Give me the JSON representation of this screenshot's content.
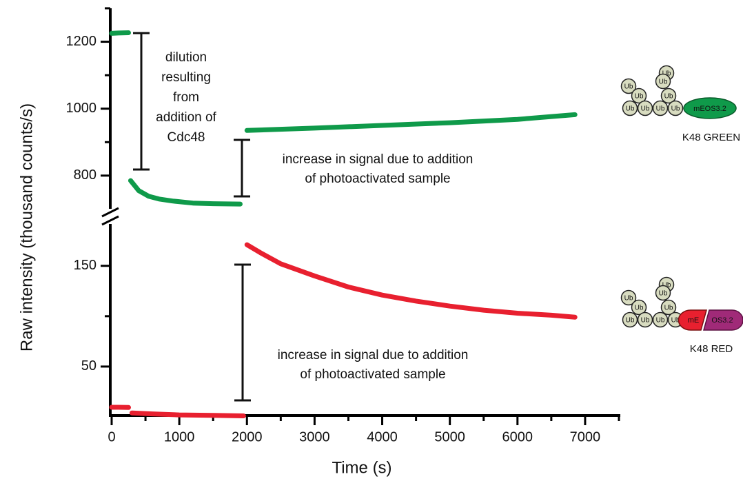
{
  "chart_data": [
    {
      "type": "line",
      "ylabel": "Raw intensity (thousand counts/s)",
      "xlim": [
        0,
        7500
      ],
      "ylim": [
        707,
        1300
      ],
      "yticks": [
        800,
        1000,
        1200
      ],
      "yminorticks": [
        900,
        1100,
        1300
      ],
      "series": [
        {
          "name": "K48 GREEN",
          "color": "#0f9a4a",
          "x": [
            0,
            100,
            250,
            265,
            280,
            400,
            550,
            700,
            900,
            1200,
            1500,
            1900,
            1950,
            2000,
            3000,
            4000,
            5000,
            6000,
            6850
          ],
          "values": [
            1225,
            1226,
            1227,
            null,
            785,
            755,
            738,
            730,
            724,
            718,
            716,
            715,
            null,
            935,
            942,
            950,
            958,
            968,
            982
          ]
        }
      ],
      "annotations": [
        {
          "lines": [
            "dilution",
            "resulting",
            "from",
            "addition of",
            "Cdc48"
          ]
        },
        {
          "lines": [
            "increase in signal due to addition",
            "of photoactivated sample"
          ]
        }
      ],
      "icon": {
        "unit": "Ub",
        "tag": [
          "mEOS3.2"
        ]
      }
    },
    {
      "type": "line",
      "xlabel": "Time (s)",
      "xlim": [
        0,
        7500
      ],
      "xticks": [
        0,
        1000,
        2000,
        3000,
        4000,
        5000,
        6000,
        7000
      ],
      "xminorticks": [
        500,
        1500,
        2500,
        3500,
        4500,
        5500,
        6500,
        7500
      ],
      "ylim": [
        0,
        195
      ],
      "yticks": [
        50,
        150
      ],
      "yminorticks": [
        100
      ],
      "series": [
        {
          "name": "K48 RED",
          "color": "#e8202f",
          "x": [
            0,
            100,
            250,
            265,
            300,
            600,
            1000,
            1500,
            1950,
            1975,
            2000,
            2200,
            2500,
            3000,
            3500,
            4000,
            4500,
            5000,
            5500,
            6000,
            6500,
            6850
          ],
          "values": [
            9.6,
            9.6,
            9.4,
            null,
            4,
            3,
            2,
            1.5,
            1,
            null,
            171,
            163,
            152,
            140,
            129,
            121,
            115,
            110,
            106,
            103,
            101,
            99
          ]
        }
      ],
      "annotations": [
        {
          "lines": [
            "increase in signal due to addition",
            "of photoactivated sample"
          ]
        }
      ],
      "icon": {
        "unit": "Ub",
        "tag": [
          "mE",
          "OS3.2"
        ]
      }
    }
  ]
}
